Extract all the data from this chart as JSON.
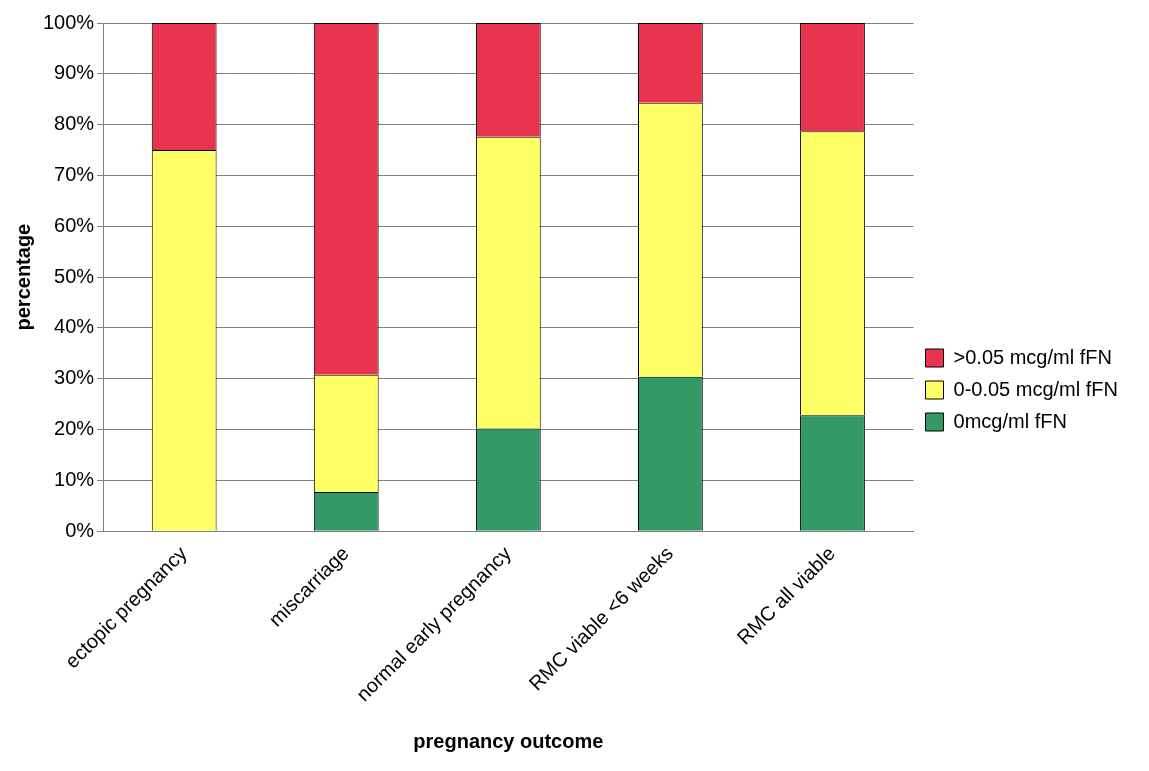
{
  "chart_data": {
    "type": "bar",
    "stacked": true,
    "xlabel": "pregnancy outcome",
    "ylabel": "percentage",
    "categories": [
      "ectopic pregnancy",
      "miscarriage",
      "normal early pregnancy",
      "RMC viable <6 weeks",
      "RMC all viable"
    ],
    "series": [
      {
        "name": "0mcg/ml fFN",
        "color": "#339966",
        "values": [
          0,
          7.7,
          20.2,
          30.4,
          22.8
        ]
      },
      {
        "name": "0-0.05 mcg/ml fFN",
        "color": "#ffff66",
        "values": [
          75,
          23.1,
          57.4,
          53.9,
          55.9
        ]
      },
      {
        "name": ">0.05 mcg/ml fFN",
        "color": "#e8344f",
        "values": [
          25,
          69.2,
          22.4,
          15.7,
          21.3
        ]
      }
    ],
    "ylim": [
      0,
      100
    ],
    "yticks": [
      {
        "value": 0,
        "label": "0%"
      },
      {
        "value": 10,
        "label": "10%"
      },
      {
        "value": 20,
        "label": "20%"
      },
      {
        "value": 30,
        "label": "30%"
      },
      {
        "value": 40,
        "label": "40%"
      },
      {
        "value": 50,
        "label": "50%"
      },
      {
        "value": 60,
        "label": "60%"
      },
      {
        "value": 70,
        "label": "70%"
      },
      {
        "value": 80,
        "label": "80%"
      },
      {
        "value": 90,
        "label": "90%"
      },
      {
        "value": 100,
        "label": "100%"
      }
    ],
    "grid": "y",
    "legend": "right"
  }
}
